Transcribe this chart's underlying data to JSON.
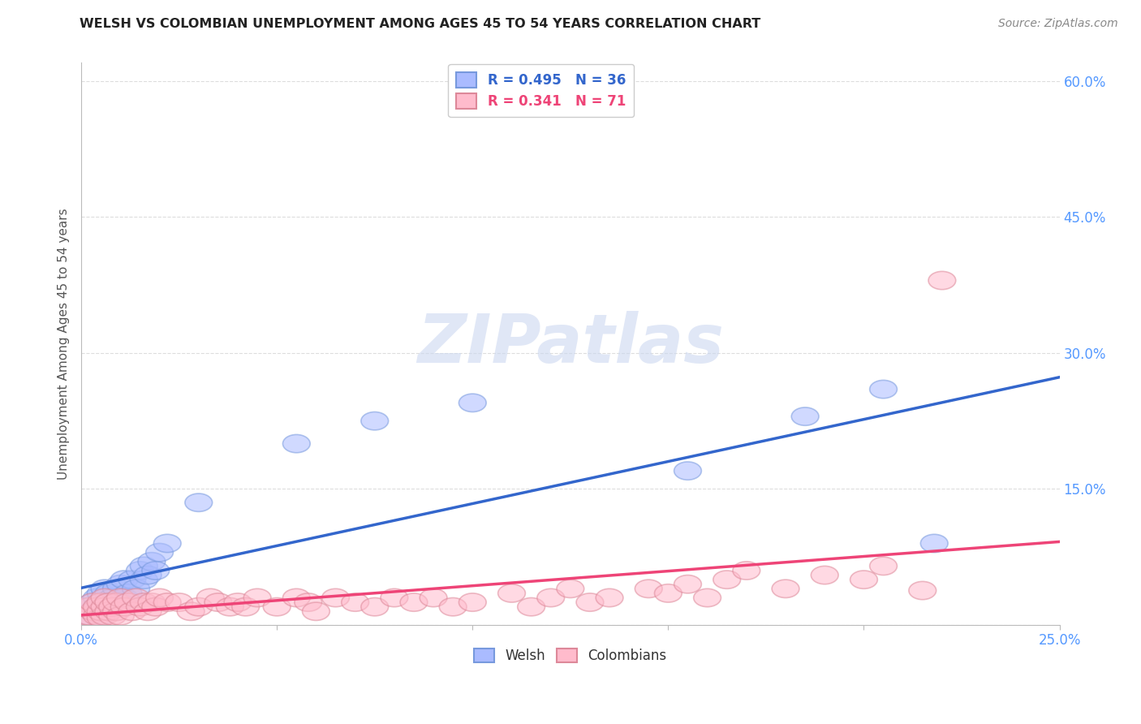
{
  "title": "WELSH VS COLOMBIAN UNEMPLOYMENT AMONG AGES 45 TO 54 YEARS CORRELATION CHART",
  "source": "Source: ZipAtlas.com",
  "ylabel": "Unemployment Among Ages 45 to 54 years",
  "xlim": [
    0.0,
    0.25
  ],
  "ylim": [
    0.0,
    0.62
  ],
  "yticks": [
    0.0,
    0.15,
    0.3,
    0.45,
    0.6
  ],
  "ytick_labels": [
    "",
    "15.0%",
    "30.0%",
    "45.0%",
    "60.0%"
  ],
  "xtick_vals": [
    0.0,
    0.05,
    0.1,
    0.15,
    0.2,
    0.25
  ],
  "xtick_labels": [
    "0.0%",
    "",
    "",
    "",
    "",
    "25.0%"
  ],
  "welsh_R": 0.495,
  "welsh_N": 36,
  "colombian_R": 0.341,
  "colombian_N": 71,
  "welsh_fill_color": "#aabbff",
  "welsh_edge_color": "#7799dd",
  "colombian_fill_color": "#ffbbcc",
  "colombian_edge_color": "#dd8899",
  "welsh_line_color": "#3366cc",
  "colombian_line_color": "#ee4477",
  "background_color": "#ffffff",
  "watermark_text": "ZIPatlas",
  "watermark_color": "#ccd8f0",
  "grid_color": "#dddddd",
  "title_color": "#222222",
  "source_color": "#888888",
  "ylabel_color": "#555555",
  "tick_color": "#5599ff",
  "welsh_x": [
    0.002,
    0.003,
    0.003,
    0.004,
    0.004,
    0.005,
    0.005,
    0.006,
    0.006,
    0.007,
    0.007,
    0.008,
    0.009,
    0.01,
    0.01,
    0.011,
    0.011,
    0.012,
    0.013,
    0.014,
    0.015,
    0.016,
    0.016,
    0.017,
    0.018,
    0.019,
    0.02,
    0.022,
    0.03,
    0.055,
    0.075,
    0.1,
    0.155,
    0.185,
    0.205,
    0.218
  ],
  "welsh_y": [
    0.01,
    0.015,
    0.025,
    0.02,
    0.03,
    0.01,
    0.035,
    0.02,
    0.04,
    0.025,
    0.035,
    0.03,
    0.04,
    0.025,
    0.045,
    0.03,
    0.05,
    0.035,
    0.05,
    0.04,
    0.06,
    0.05,
    0.065,
    0.055,
    0.07,
    0.06,
    0.08,
    0.09,
    0.135,
    0.2,
    0.225,
    0.245,
    0.17,
    0.23,
    0.26,
    0.09
  ],
  "colombian_x": [
    0.001,
    0.002,
    0.002,
    0.003,
    0.003,
    0.004,
    0.004,
    0.005,
    0.005,
    0.005,
    0.006,
    0.006,
    0.006,
    0.007,
    0.007,
    0.008,
    0.008,
    0.009,
    0.009,
    0.01,
    0.01,
    0.011,
    0.012,
    0.013,
    0.014,
    0.015,
    0.016,
    0.017,
    0.018,
    0.019,
    0.02,
    0.022,
    0.025,
    0.028,
    0.03,
    0.033,
    0.035,
    0.038,
    0.04,
    0.042,
    0.045,
    0.05,
    0.055,
    0.058,
    0.06,
    0.065,
    0.07,
    0.075,
    0.08,
    0.085,
    0.09,
    0.095,
    0.1,
    0.11,
    0.115,
    0.12,
    0.125,
    0.13,
    0.135,
    0.145,
    0.15,
    0.155,
    0.16,
    0.165,
    0.17,
    0.18,
    0.19,
    0.2,
    0.205,
    0.215,
    0.22
  ],
  "colombian_y": [
    0.01,
    0.01,
    0.02,
    0.015,
    0.025,
    0.01,
    0.02,
    0.008,
    0.015,
    0.025,
    0.01,
    0.02,
    0.03,
    0.015,
    0.025,
    0.01,
    0.02,
    0.015,
    0.025,
    0.01,
    0.03,
    0.02,
    0.025,
    0.015,
    0.03,
    0.02,
    0.025,
    0.015,
    0.025,
    0.02,
    0.03,
    0.025,
    0.025,
    0.015,
    0.02,
    0.03,
    0.025,
    0.02,
    0.025,
    0.02,
    0.03,
    0.02,
    0.03,
    0.025,
    0.015,
    0.03,
    0.025,
    0.02,
    0.03,
    0.025,
    0.03,
    0.02,
    0.025,
    0.035,
    0.02,
    0.03,
    0.04,
    0.025,
    0.03,
    0.04,
    0.035,
    0.045,
    0.03,
    0.05,
    0.06,
    0.04,
    0.055,
    0.05,
    0.065,
    0.038,
    0.38
  ]
}
